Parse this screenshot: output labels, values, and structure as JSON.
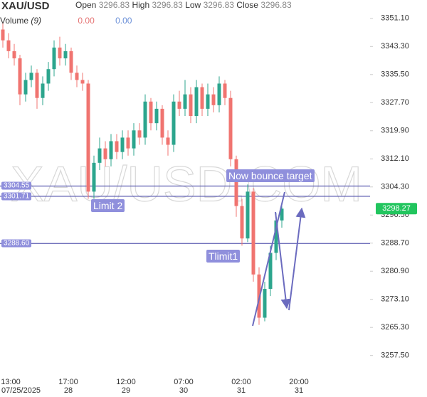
{
  "chart_data": {
    "type": "candlestick",
    "symbol": "XAU/USD",
    "header": {
      "open_label": "Open",
      "open": 3296.83,
      "high_label": "High",
      "high": 3296.83,
      "low_label": "Low",
      "low": 3296.83,
      "close_label": "Close",
      "close": 3296.83
    },
    "volume": {
      "label": "Volume",
      "period": "(9)",
      "values": [
        "0.00",
        "0.00"
      ]
    },
    "watermark": "XAU/USD.COM",
    "up_color": "#2ca58d",
    "down_color": "#f07470",
    "open": [
      3348,
      3345,
      3342,
      3340,
      3330,
      3334,
      3336,
      3329,
      3333,
      3337,
      3343,
      3340,
      3342,
      3336,
      3334,
      3333,
      3303,
      3311,
      3315,
      3312,
      3317,
      3314,
      3318,
      3315,
      3320,
      3318,
      3328,
      3322,
      3326,
      3318,
      3316,
      3328,
      3326,
      3330,
      3324,
      3332,
      3326,
      3330,
      3327,
      3333,
      3329,
      3312,
      3299,
      3290,
      3303,
      3280,
      3268,
      3276,
      3286,
      3295
    ],
    "high": [
      3350,
      3347,
      3344,
      3341,
      3336,
      3338,
      3337,
      3335,
      3339,
      3345,
      3346,
      3344,
      3343,
      3338,
      3336,
      3334,
      3313,
      3318,
      3317,
      3319,
      3319,
      3320,
      3320,
      3322,
      3322,
      3330,
      3329,
      3328,
      3327,
      3320,
      3330,
      3331,
      3334,
      3332,
      3334,
      3333,
      3333,
      3332,
      3335,
      3334,
      3331,
      3313,
      3301,
      3305,
      3304,
      3282,
      3278,
      3288,
      3297,
      3299
    ],
    "low": [
      3343,
      3340,
      3338,
      3327,
      3328,
      3332,
      3326,
      3327,
      3331,
      3335,
      3338,
      3338,
      3334,
      3332,
      3331,
      3301,
      3301,
      3309,
      3310,
      3310,
      3312,
      3312,
      3313,
      3313,
      3316,
      3316,
      3320,
      3320,
      3316,
      3313,
      3314,
      3324,
      3324,
      3322,
      3322,
      3324,
      3324,
      3325,
      3325,
      3327,
      3310,
      3296,
      3288,
      3289,
      3278,
      3266,
      3267,
      3274,
      3284,
      3293
    ],
    "close": [
      3345,
      3342,
      3340,
      3330,
      3334,
      3336,
      3329,
      3333,
      3337,
      3343,
      3340,
      3342,
      3336,
      3334,
      3333,
      3303,
      3311,
      3315,
      3312,
      3317,
      3314,
      3318,
      3315,
      3320,
      3318,
      3328,
      3322,
      3326,
      3318,
      3316,
      3328,
      3326,
      3330,
      3324,
      3332,
      3326,
      3330,
      3327,
      3333,
      3329,
      3312,
      3299,
      3290,
      3303,
      3280,
      3268,
      3276,
      3286,
      3295,
      3298.27
    ],
    "ylim": [
      3252.5,
      3356.2
    ],
    "yticks": [
      {
        "value": 3351.1,
        "label": "3351.10"
      },
      {
        "value": 3343.3,
        "label": "3343.30"
      },
      {
        "value": 3335.5,
        "label": "3335.50"
      },
      {
        "value": 3327.7,
        "label": "3327.70"
      },
      {
        "value": 3319.9,
        "label": "3319.90"
      },
      {
        "value": 3312.1,
        "label": "3312.10"
      },
      {
        "value": 3304.3,
        "label": "3304.30"
      },
      {
        "value": 3296.5,
        "label": "3296.50"
      },
      {
        "value": 3288.7,
        "label": "3288.70"
      },
      {
        "value": 3280.9,
        "label": "3280.90"
      },
      {
        "value": 3273.1,
        "label": "3273.10"
      },
      {
        "value": 3265.3,
        "label": "3265.30"
      },
      {
        "value": 3257.5,
        "label": "3257.50"
      }
    ],
    "xticks": [
      {
        "time": "13:00",
        "date": "07/25/2025"
      },
      {
        "time": "17:00",
        "date": "28"
      },
      {
        "time": "12:00",
        "date": "29"
      },
      {
        "time": "07:00",
        "date": "30"
      },
      {
        "time": "02:00",
        "date": "31"
      },
      {
        "time": "20:00",
        "date": "31"
      }
    ],
    "levels": [
      {
        "value": 3304.55,
        "label": "3304.55"
      },
      {
        "value": 3301.71,
        "label": "3301.71"
      },
      {
        "value": 3288.6,
        "label": "3288.60"
      }
    ],
    "last_price": 3298.27,
    "annotations": [
      "Now bounce target",
      "Limit 2",
      "Tlimit1"
    ]
  }
}
